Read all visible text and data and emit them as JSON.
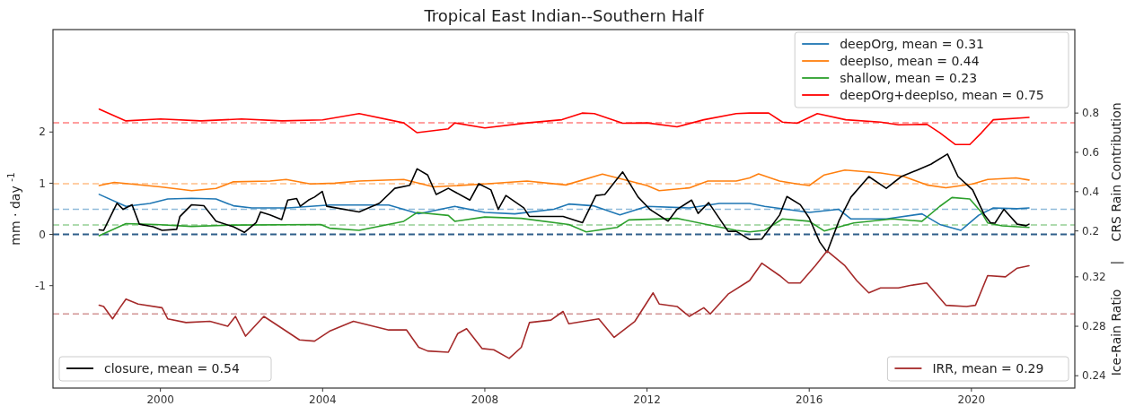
{
  "chart_data": {
    "type": "line",
    "title": "Tropical East Indian--Southern Half",
    "ylabel": "mm · day $^{-1}$",
    "y2label": "CRS Rain Contribution",
    "y3label": "Ice-Rain Ratio",
    "annotations": [
      "|"
    ],
    "xlim": [
      1997.35,
      2022.55
    ],
    "xticks": [
      2000,
      2004,
      2008,
      2012,
      2016,
      2020
    ],
    "ylim": [
      -3,
      4
    ],
    "yticks": [
      -1,
      0,
      1,
      2
    ],
    "y2lim": [
      -0.6,
      1.225
    ],
    "y2ticks": [
      0.2,
      0.4,
      0.6,
      0.8
    ],
    "y3lim": [
      0.23,
      0.52
    ],
    "y3ticks": [
      0.24,
      0.28,
      0.32
    ],
    "legend": "top right",
    "series": [
      {
        "name": "deepOrg, mean = 0.31",
        "color": "#1f77b4",
        "axis": "y2",
        "x": [
          1998.49,
          1999.15,
          1999.74,
          2000.18,
          2000.77,
          2001.37,
          2001.8,
          2002.25,
          2003.14,
          2004.17,
          2004.9,
          2005.63,
          2006.37,
          2007.26,
          2008,
          2008.74,
          2009.7,
          2010.07,
          2010.67,
          2011.33,
          2012,
          2013.04,
          2013.78,
          2014.53,
          2014.9,
          2016,
          2016.73,
          2017.03,
          2017.9,
          2018.78,
          2019.22,
          2019.74,
          2020.18,
          2020.54,
          2021.13,
          2021.42
        ],
        "values": [
          0.386,
          0.325,
          0.34,
          0.363,
          0.366,
          0.363,
          0.328,
          0.317,
          0.317,
          0.332,
          0.332,
          0.332,
          0.287,
          0.325,
          0.294,
          0.287,
          0.31,
          0.337,
          0.328,
          0.282,
          0.325,
          0.317,
          0.34,
          0.34,
          0.325,
          0.294,
          0.31,
          0.261,
          0.261,
          0.287,
          0.233,
          0.203,
          0.28,
          0.317,
          0.313,
          0.317
        ]
      },
      {
        "name": "deepIso, mean = 0.44",
        "color": "#ff7f0e",
        "axis": "y2",
        "x": [
          1998.49,
          1998.86,
          2000,
          2000.77,
          2001.37,
          2001.8,
          2002.7,
          2003.1,
          2003.7,
          2004.3,
          2004.9,
          2006,
          2006.74,
          2008,
          2009.04,
          2010,
          2010.9,
          2012,
          2012.3,
          2013.04,
          2013.5,
          2014.2,
          2014.53,
          2014.75,
          2015.27,
          2015.7,
          2016,
          2016.37,
          2016.88,
          2017.76,
          2018.34,
          2018.9,
          2019.37,
          2020.03,
          2020.4,
          2021.1,
          2021.42
        ],
        "values": [
          0.431,
          0.447,
          0.424,
          0.405,
          0.416,
          0.45,
          0.454,
          0.462,
          0.439,
          0.443,
          0.454,
          0.462,
          0.424,
          0.439,
          0.454,
          0.434,
          0.489,
          0.431,
          0.405,
          0.419,
          0.454,
          0.454,
          0.47,
          0.49,
          0.454,
          0.439,
          0.431,
          0.485,
          0.51,
          0.495,
          0.477,
          0.434,
          0.42,
          0.439,
          0.462,
          0.47,
          0.459
        ]
      },
      {
        "name": "shallow, mean = 0.23",
        "color": "#2ca02c",
        "axis": "y2",
        "x": [
          1998.49,
          1999.15,
          1999.89,
          2000.77,
          2001.8,
          2003.95,
          2004.17,
          2004.9,
          2006,
          2006.33,
          2007.1,
          2007.26,
          2008,
          2008.9,
          2010.07,
          2010.5,
          2011.26,
          2011.55,
          2012.74,
          2013.63,
          2014.2,
          2014.53,
          2014.9,
          2015.34,
          2016,
          2016.37,
          2017.1,
          2018.05,
          2018.78,
          2019.22,
          2019.52,
          2019.96,
          2020.25,
          2020.4,
          2020.76,
          2021.42
        ],
        "values": [
          0.176,
          0.237,
          0.233,
          0.223,
          0.23,
          0.233,
          0.214,
          0.203,
          0.249,
          0.294,
          0.279,
          0.249,
          0.271,
          0.264,
          0.233,
          0.195,
          0.218,
          0.256,
          0.264,
          0.226,
          0.203,
          0.195,
          0.203,
          0.261,
          0.249,
          0.2,
          0.241,
          0.261,
          0.249,
          0.325,
          0.37,
          0.363,
          0.294,
          0.241,
          0.226,
          0.218
        ]
      },
      {
        "name": "deepOrg+deepIso, mean = 0.75",
        "color": "#ff0000",
        "axis": "y2",
        "x": [
          1998.49,
          1999.15,
          2000,
          2001,
          2002,
          2003,
          2004,
          2004.9,
          2006,
          2006.33,
          2007.1,
          2007.26,
          2008,
          2009.04,
          2009.9,
          2010.4,
          2010.7,
          2011.4,
          2012,
          2012.74,
          2013.4,
          2014.2,
          2014.53,
          2015,
          2015.34,
          2015.7,
          2016.2,
          2016.9,
          2017.76,
          2018.2,
          2018.9,
          2019.22,
          2019.6,
          2019.96,
          2020.25,
          2020.54,
          2021.42
        ],
        "values": [
          0.82,
          0.76,
          0.77,
          0.76,
          0.77,
          0.76,
          0.765,
          0.797,
          0.75,
          0.7,
          0.72,
          0.75,
          0.724,
          0.75,
          0.766,
          0.8,
          0.797,
          0.748,
          0.75,
          0.73,
          0.766,
          0.797,
          0.8,
          0.8,
          0.754,
          0.748,
          0.797,
          0.766,
          0.754,
          0.74,
          0.743,
          0.7,
          0.64,
          0.64,
          0.7,
          0.766,
          0.778
        ]
      },
      {
        "name": "closure, mean = 0.54",
        "color": "#000000",
        "axis": "y",
        "x": [
          1998.49,
          1998.6,
          1998.93,
          1999.08,
          1999.3,
          1999.48,
          1999.82,
          2000.04,
          2000.4,
          2000.48,
          2000.77,
          2001.07,
          2001.37,
          2001.8,
          2002.07,
          2002.36,
          2002.47,
          2002.7,
          2002.99,
          2003.14,
          2003.36,
          2003.45,
          2003.65,
          2003.8,
          2003.99,
          2004.1,
          2004.9,
          2005.4,
          2005.78,
          2006.15,
          2006.33,
          2006.59,
          2006.8,
          2007.1,
          2007.63,
          2007.85,
          2008.15,
          2008.33,
          2008.52,
          2008.96,
          2009.1,
          2009.93,
          2010.41,
          2010.74,
          2010.96,
          2011.4,
          2011.78,
          2012.07,
          2012.52,
          2012.74,
          2013.1,
          2013.26,
          2013.52,
          2014,
          2014.2,
          2014.53,
          2014.83,
          2015.27,
          2015.45,
          2015.78,
          2016,
          2016.26,
          2016.44,
          2016.73,
          2017.03,
          2017.47,
          2017.9,
          2018.27,
          2018.64,
          2019,
          2019.41,
          2019.67,
          2020.03,
          2020.32,
          2020.47,
          2020.58,
          2020.8,
          2021.13,
          2021.35,
          2021.42
        ],
        "values": [
          0.09,
          0.08,
          0.61,
          0.49,
          0.58,
          0.2,
          0.15,
          0.08,
          0.1,
          0.35,
          0.58,
          0.56,
          0.26,
          0.15,
          0.04,
          0.23,
          0.44,
          0.38,
          0.29,
          0.67,
          0.7,
          0.55,
          0.67,
          0.73,
          0.84,
          0.55,
          0.44,
          0.61,
          0.9,
          0.96,
          1.28,
          1.16,
          0.78,
          0.9,
          0.67,
          0.99,
          0.87,
          0.49,
          0.76,
          0.52,
          0.35,
          0.35,
          0.23,
          0.76,
          0.78,
          1.22,
          0.73,
          0.49,
          0.26,
          0.49,
          0.67,
          0.41,
          0.62,
          0.06,
          0.06,
          -0.1,
          -0.09,
          0.38,
          0.74,
          0.58,
          0.32,
          -0.15,
          -0.35,
          0.26,
          0.73,
          1.13,
          0.9,
          1.13,
          1.25,
          1.37,
          1.57,
          1.13,
          0.87,
          0.38,
          0.23,
          0.22,
          0.49,
          0.2,
          0.17,
          0.2
        ]
      },
      {
        "name": "IRR, mean = 0.29",
        "color": "#a52a2a",
        "axis": "y3",
        "x": [
          1998.49,
          1998.6,
          1998.82,
          1999,
          1999.15,
          1999.45,
          2000.04,
          2000.18,
          2000.63,
          2001.22,
          2001.66,
          2001.85,
          2002.1,
          2002.55,
          2002.92,
          2003.43,
          2003.8,
          2004.17,
          2004.76,
          2005.63,
          2006.07,
          2006.37,
          2006.59,
          2007.1,
          2007.33,
          2007.55,
          2007.93,
          2008.22,
          2008.6,
          2008.9,
          2009.1,
          2009.63,
          2009.93,
          2010.07,
          2010.81,
          2011.19,
          2011.7,
          2012.15,
          2012.3,
          2012.74,
          2013.04,
          2013.4,
          2013.56,
          2014,
          2014.53,
          2014.83,
          2015.27,
          2015.49,
          2015.78,
          2016.15,
          2016.44,
          2016.88,
          2017.17,
          2017.47,
          2017.76,
          2018.2,
          2018.49,
          2018.9,
          2019.37,
          2019.88,
          2020.1,
          2020.4,
          2020.84,
          2021.13,
          2021.42
        ],
        "values": [
          0.297,
          0.296,
          0.286,
          0.295,
          0.302,
          0.298,
          0.295,
          0.286,
          0.283,
          0.284,
          0.28,
          0.288,
          0.272,
          0.288,
          0.28,
          0.269,
          0.268,
          0.276,
          0.284,
          0.277,
          0.277,
          0.263,
          0.26,
          0.259,
          0.274,
          0.278,
          0.262,
          0.261,
          0.254,
          0.263,
          0.283,
          0.285,
          0.292,
          0.282,
          0.286,
          0.271,
          0.284,
          0.307,
          0.298,
          0.296,
          0.288,
          0.295,
          0.29,
          0.306,
          0.317,
          0.331,
          0.321,
          0.315,
          0.315,
          0.329,
          0.341,
          0.329,
          0.317,
          0.307,
          0.311,
          0.311,
          0.313,
          0.315,
          0.297,
          0.296,
          0.297,
          0.321,
          0.32,
          0.327,
          0.329
        ]
      }
    ],
    "ref_lines": [
      {
        "axis": "y2",
        "value": 0.31,
        "color": "#8fbbd9",
        "line_style": "dashed"
      },
      {
        "axis": "y2",
        "value": 0.44,
        "color": "#ffbf86",
        "line_style": "dashed"
      },
      {
        "axis": "y2",
        "value": 0.23,
        "color": "#95cf95",
        "line_style": "dashed"
      },
      {
        "axis": "y2",
        "value": 0.75,
        "color": "#ff8080",
        "line_style": "dashed"
      },
      {
        "axis": "y3",
        "value": 0.29,
        "color": "#d29494",
        "line_style": "dashed"
      },
      {
        "axis": "y",
        "value": 0,
        "color": "#2f5f8a",
        "line_style": "dashed"
      }
    ]
  }
}
